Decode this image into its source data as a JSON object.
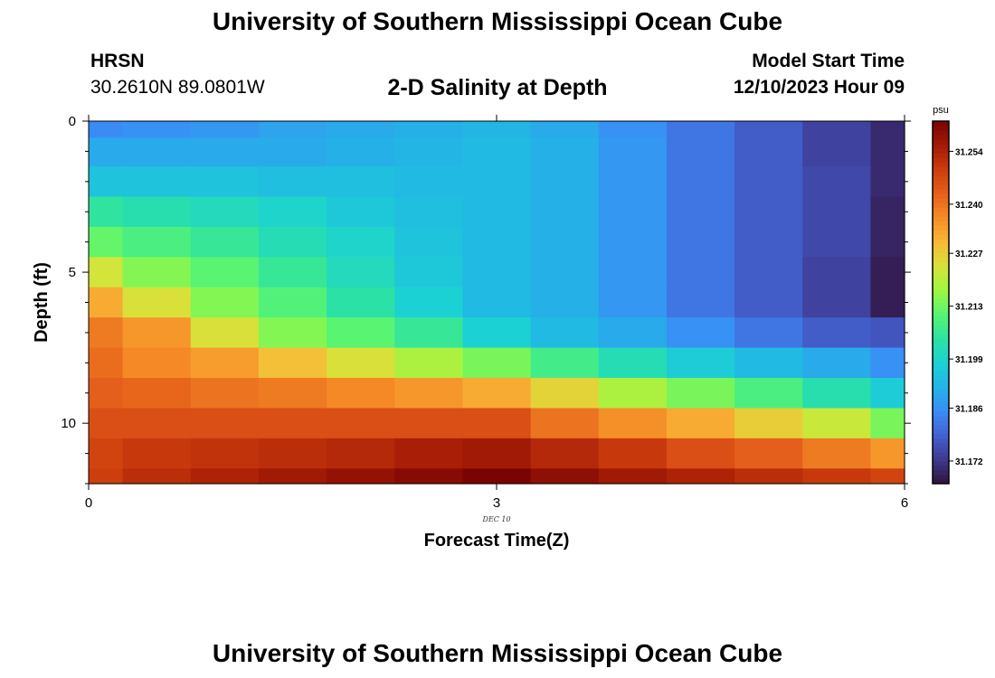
{
  "header": {
    "title": "University of Southern Mississippi Ocean Cube",
    "station": "HRSN",
    "coords": "30.2610N  89.0801W",
    "subtitle": "2-D Salinity at Depth",
    "run_label": "Model Start Time",
    "run_time": "12/10/2023 Hour 09"
  },
  "footer": {
    "title": "University of Southern Mississippi Ocean Cube"
  },
  "colors": {
    "scale": [
      "#30123b",
      "#3e388f",
      "#4361d0",
      "#3b8cf7",
      "#23b4e6",
      "#1cd1d3",
      "#2ce2a3",
      "#57f474",
      "#9bf741",
      "#d7e33a",
      "#f8b937",
      "#f58d27",
      "#e5601b",
      "#cc3d0e",
      "#a41b05",
      "#7a0403"
    ]
  },
  "chart_data": {
    "type": "heatmap",
    "title": "2-D Salinity at Depth",
    "xlabel": "Forecast Time(Z)",
    "ylabel": "Depth (ft)",
    "x_date_label": "DEC 10",
    "units": "psu",
    "xlim": [
      0,
      6
    ],
    "ylim": [
      0,
      12
    ],
    "y_inverted": true,
    "x_ticks": [
      0,
      3,
      6
    ],
    "y_ticks": [
      0,
      5,
      10
    ],
    "x_edges": [
      0,
      0.25,
      0.75,
      1.25,
      1.75,
      2.25,
      2.75,
      3.25,
      3.75,
      4.25,
      4.75,
      5.25,
      5.75,
      6
    ],
    "y_edges": [
      0,
      0.55,
      1.5,
      2.5,
      3.5,
      4.5,
      5.5,
      6.5,
      7.5,
      8.5,
      9.5,
      10.5,
      11.5,
      12
    ],
    "colorbar_ticks": [
      31.172,
      31.186,
      31.199,
      31.213,
      31.227,
      31.24,
      31.254
    ],
    "colorbar_range": [
      31.166,
      31.262
    ],
    "values": [
      [
        31.185,
        31.186,
        31.187,
        31.189,
        31.19,
        31.191,
        31.192,
        31.19,
        31.186,
        31.182,
        31.178,
        31.174,
        31.17
      ],
      [
        31.19,
        31.19,
        31.19,
        31.19,
        31.191,
        31.192,
        31.193,
        31.191,
        31.187,
        31.182,
        31.178,
        31.174,
        31.17
      ],
      [
        31.195,
        31.195,
        31.195,
        31.194,
        31.194,
        31.193,
        31.193,
        31.191,
        31.187,
        31.182,
        31.178,
        31.175,
        31.17
      ],
      [
        31.205,
        31.203,
        31.201,
        31.199,
        31.196,
        31.194,
        31.193,
        31.191,
        31.187,
        31.182,
        31.178,
        31.175,
        31.169
      ],
      [
        31.212,
        31.209,
        31.206,
        31.202,
        31.199,
        31.195,
        31.193,
        31.191,
        31.187,
        31.182,
        31.178,
        31.175,
        31.169
      ],
      [
        31.223,
        31.215,
        31.211,
        31.206,
        31.201,
        31.196,
        31.193,
        31.191,
        31.187,
        31.182,
        31.178,
        31.174,
        31.168
      ],
      [
        31.232,
        31.224,
        31.215,
        31.21,
        31.204,
        31.198,
        31.193,
        31.191,
        31.187,
        31.182,
        31.178,
        31.174,
        31.168
      ],
      [
        31.239,
        31.235,
        31.224,
        31.215,
        31.211,
        31.206,
        31.198,
        31.193,
        31.19,
        31.186,
        31.182,
        31.178,
        31.177
      ],
      [
        31.241,
        31.237,
        31.234,
        31.229,
        31.224,
        31.219,
        31.214,
        31.208,
        31.202,
        31.197,
        31.193,
        31.19,
        31.186
      ],
      [
        31.243,
        31.242,
        31.24,
        31.239,
        31.237,
        31.235,
        31.232,
        31.226,
        31.219,
        31.214,
        31.209,
        31.203,
        31.197
      ],
      [
        31.246,
        31.246,
        31.246,
        31.246,
        31.246,
        31.246,
        31.246,
        31.24,
        31.236,
        31.232,
        31.227,
        31.222,
        31.214
      ],
      [
        31.248,
        31.25,
        31.251,
        31.252,
        31.253,
        31.255,
        31.256,
        31.253,
        31.25,
        31.246,
        31.243,
        31.239,
        31.235
      ],
      [
        31.249,
        31.252,
        31.254,
        31.256,
        31.258,
        31.26,
        31.262,
        31.259,
        31.256,
        31.254,
        31.252,
        31.25,
        31.248
      ]
    ]
  }
}
